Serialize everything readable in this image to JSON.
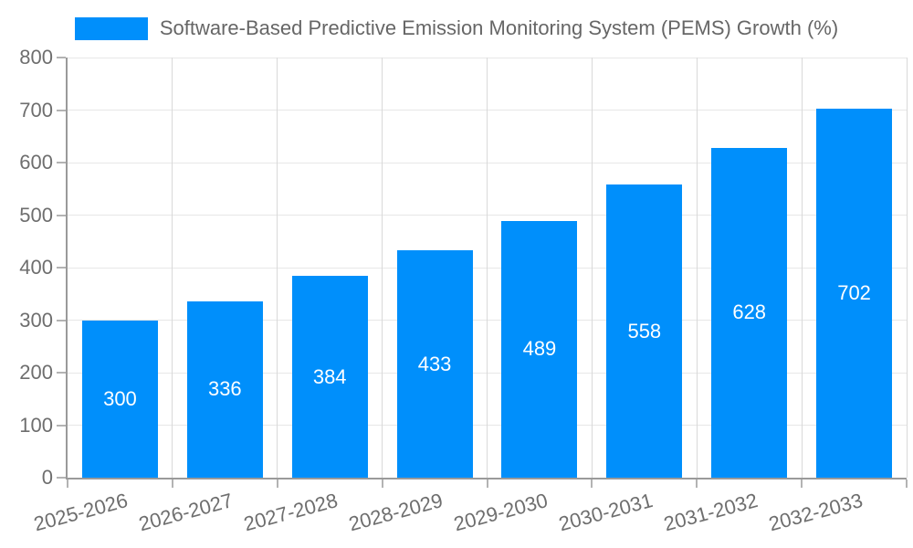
{
  "legend": {
    "label": "Software-Based Predictive Emission Monitoring System (PEMS) Growth (%)"
  },
  "chart_data": {
    "type": "bar",
    "title": "Software-Based Predictive Emission Monitoring System (PEMS) Growth (%)",
    "categories": [
      "2025-2026",
      "2026-2027",
      "2027-2028",
      "2028-2029",
      "2029-2030",
      "2030-2031",
      "2031-2032",
      "2032-2033"
    ],
    "values": [
      300,
      336,
      384,
      433,
      489,
      558,
      628,
      702
    ],
    "xlabel": "",
    "ylabel": "",
    "ylim": [
      0,
      800
    ],
    "ytick_step": 100,
    "ytick_labels": [
      "0",
      "100",
      "200",
      "300",
      "400",
      "500",
      "600",
      "700",
      "800"
    ],
    "grid": true,
    "legend_position": "top",
    "colors": {
      "bar": "#008FFB",
      "value_label": "#ffffff",
      "axis_text": "#6e6e6e",
      "legend_text": "#666666",
      "gridline": "#e7e7e7",
      "axis_line": "#9a9a9a"
    }
  }
}
